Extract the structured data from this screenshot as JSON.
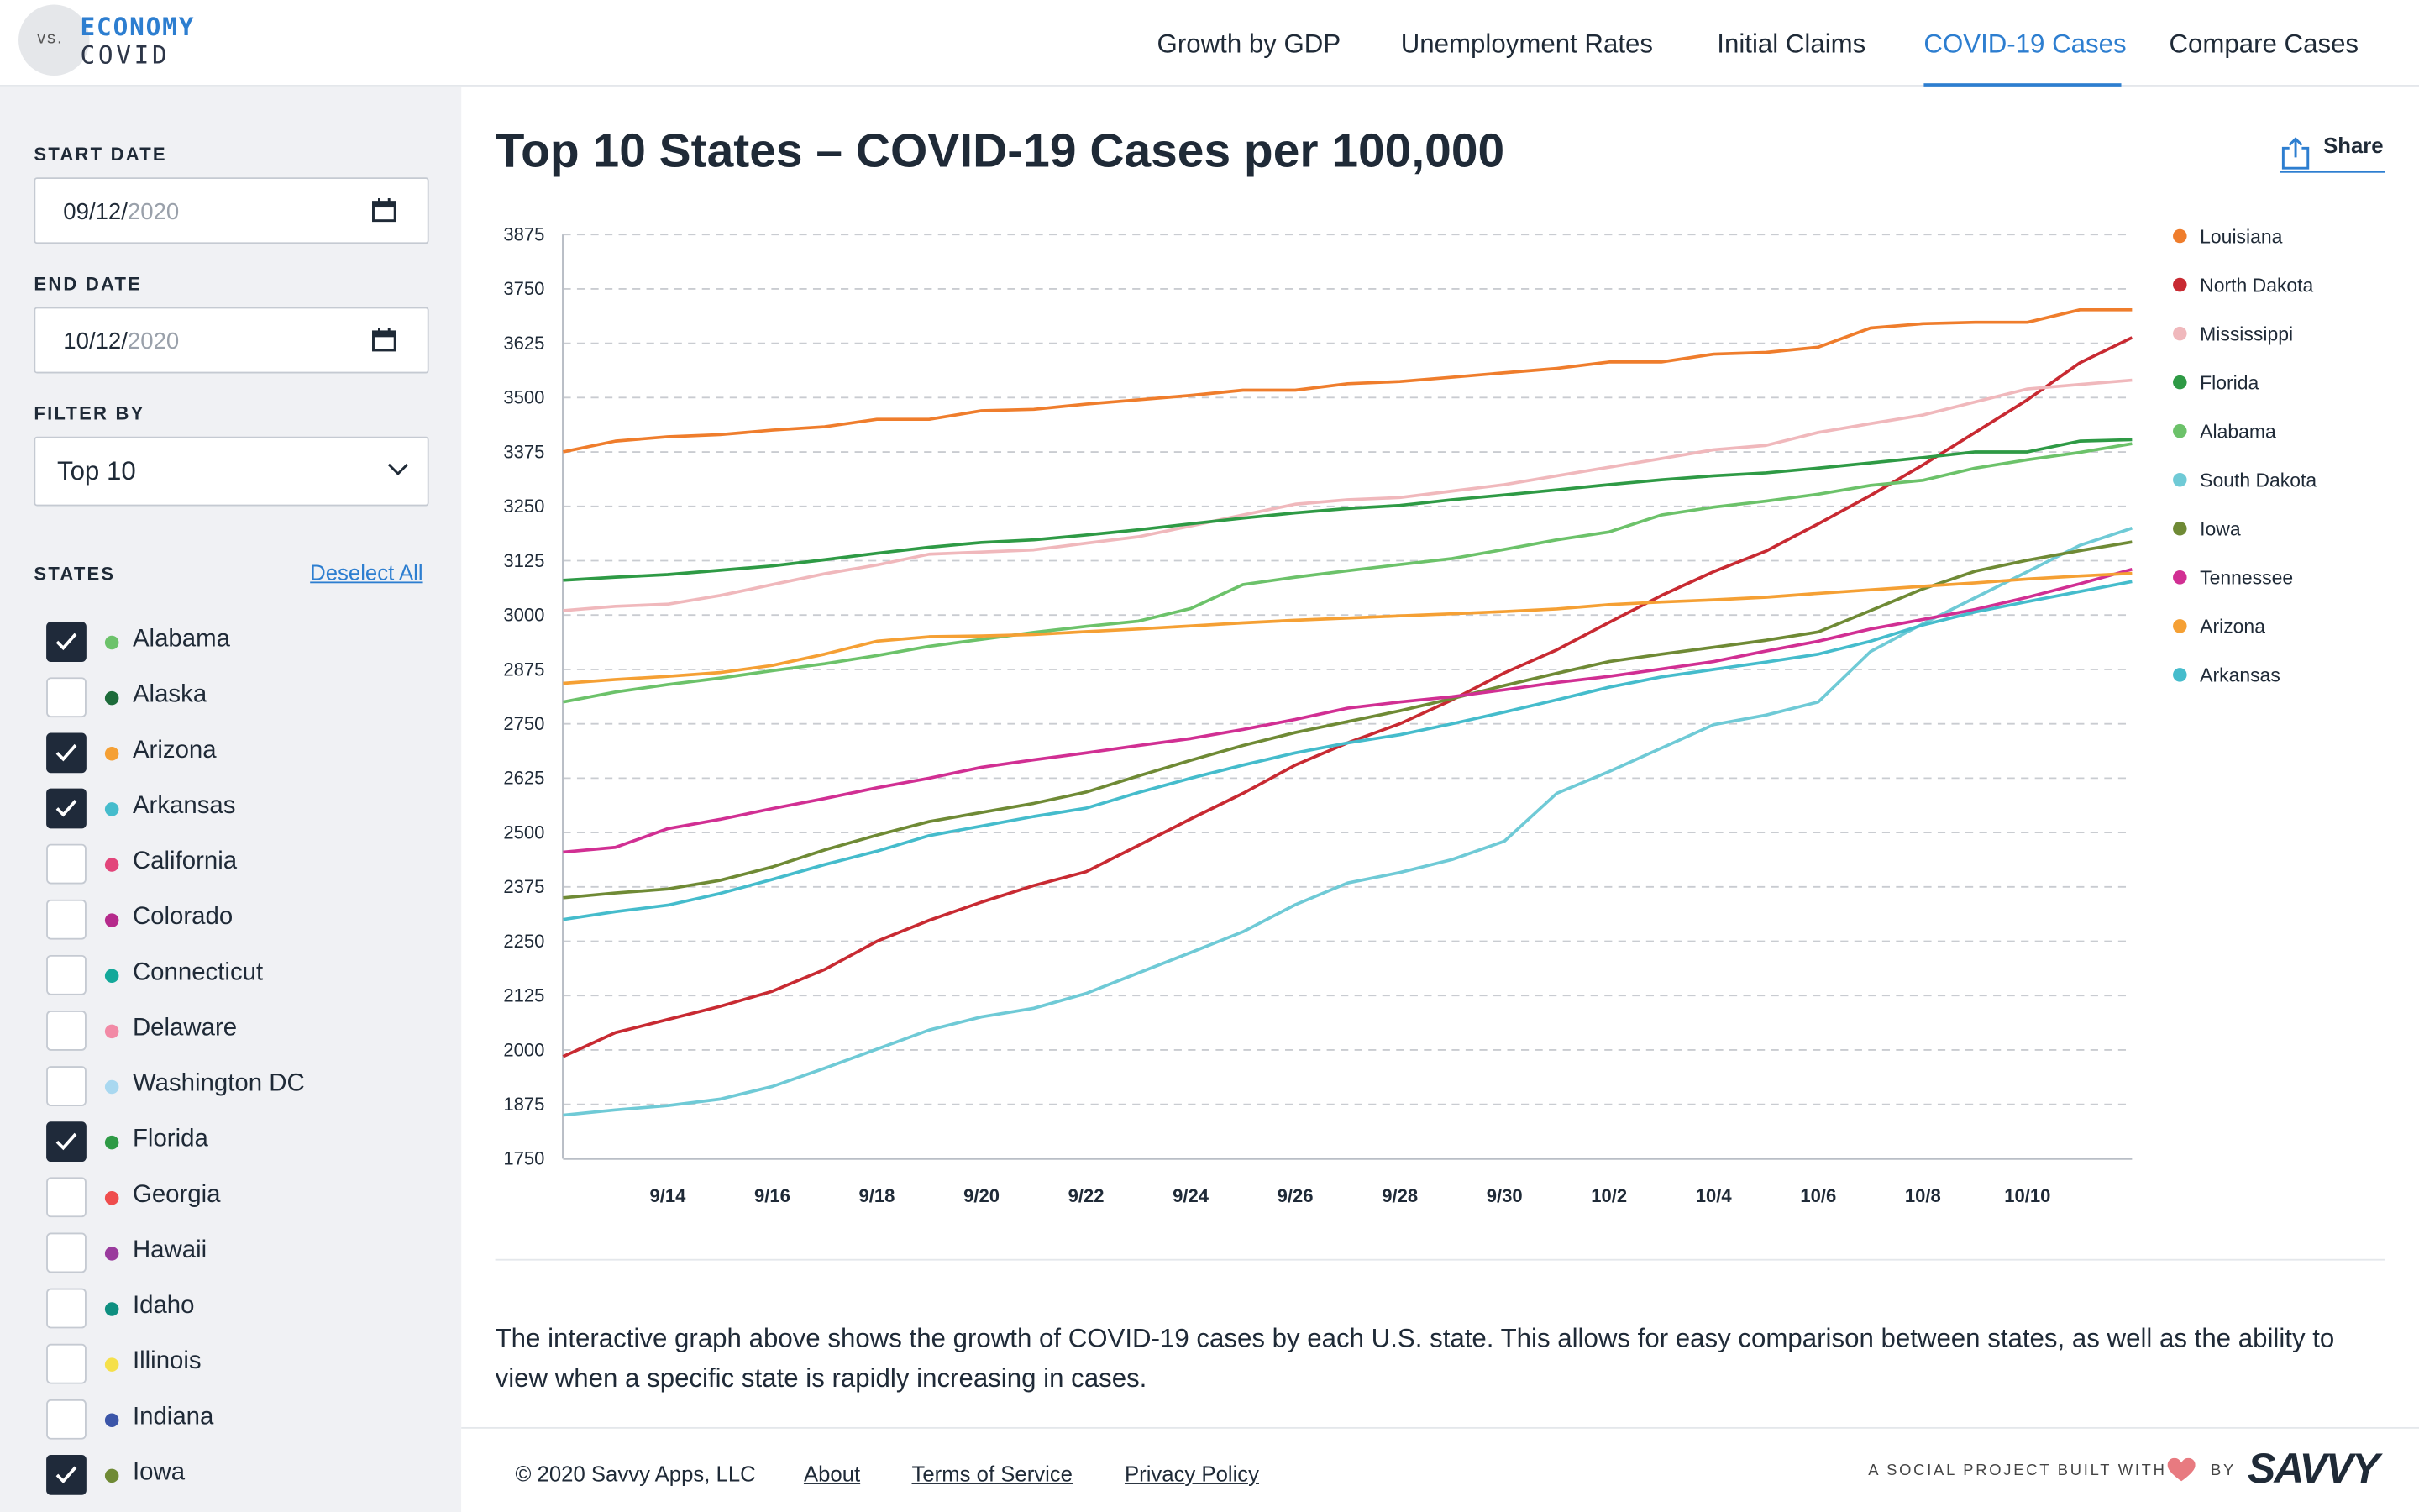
{
  "logo": {
    "prefix": "vs.",
    "line1": "ECONOMY",
    "line2": "COVID"
  },
  "nav": [
    {
      "label": "Growth by GDP",
      "active": false
    },
    {
      "label": "Unemployment Rates",
      "active": false
    },
    {
      "label": "Initial Claims",
      "active": false
    },
    {
      "label": "COVID-19 Cases",
      "active": true
    },
    {
      "label": "Compare Cases",
      "active": false
    }
  ],
  "sidebar": {
    "start_label": "START DATE",
    "start_date": {
      "mmdd": "09/12/",
      "year": "2020"
    },
    "end_label": "END DATE",
    "end_date": {
      "mmdd": "10/12/",
      "year": "2020"
    },
    "filter_label": "FILTER BY",
    "filter_value": "Top 10",
    "states_label": "STATES",
    "deselect_all": "Deselect All",
    "states": [
      {
        "name": "Alabama",
        "checked": true,
        "color": "#6cc26a"
      },
      {
        "name": "Alaska",
        "checked": false,
        "color": "#1d6b3a"
      },
      {
        "name": "Arizona",
        "checked": true,
        "color": "#f5a034"
      },
      {
        "name": "Arkansas",
        "checked": true,
        "color": "#45bccc"
      },
      {
        "name": "California",
        "checked": false,
        "color": "#e2457a"
      },
      {
        "name": "Colorado",
        "checked": false,
        "color": "#b52a8b"
      },
      {
        "name": "Connecticut",
        "checked": false,
        "color": "#14a89a"
      },
      {
        "name": "Delaware",
        "checked": false,
        "color": "#f28aa6"
      },
      {
        "name": "Washington DC",
        "checked": false,
        "color": "#a9d8f0"
      },
      {
        "name": "Florida",
        "checked": true,
        "color": "#2e9a45"
      },
      {
        "name": "Georgia",
        "checked": false,
        "color": "#ef4d4d"
      },
      {
        "name": "Hawaii",
        "checked": false,
        "color": "#9a3b9d"
      },
      {
        "name": "Idaho",
        "checked": false,
        "color": "#0e8f80"
      },
      {
        "name": "Illinois",
        "checked": false,
        "color": "#f5e04a"
      },
      {
        "name": "Indiana",
        "checked": false,
        "color": "#3b55a8"
      },
      {
        "name": "Iowa",
        "checked": true,
        "color": "#6f8a35"
      }
    ]
  },
  "main": {
    "title": "Top 10 States – COVID-19 Cases per 100,000",
    "share_label": "Share",
    "description": "The interactive graph above shows the growth of COVID-19 cases by each U.S. state. This allows for easy comparison between states, as well as the ability to view when a specific state is rapidly increasing in cases."
  },
  "footer": {
    "copyright": "© 2020 Savvy Apps, LLC",
    "links": [
      "About",
      "Terms of Service",
      "Privacy Policy"
    ],
    "social": "A SOCIAL PROJECT BUILT WITH",
    "by": "BY",
    "brand": "SAVVY"
  },
  "chart_data": {
    "type": "line",
    "title": "Top 10 States – COVID-19 Cases per 100,000",
    "xlabel": "",
    "ylabel": "",
    "ylim": [
      1750,
      3875
    ],
    "yticks": [
      1750,
      1875,
      2000,
      2125,
      2250,
      2375,
      2500,
      2625,
      2750,
      2875,
      3000,
      3125,
      3250,
      3375,
      3500,
      3625,
      3750,
      3875
    ],
    "x": [
      "9/12",
      "9/13",
      "9/14",
      "9/15",
      "9/16",
      "9/17",
      "9/18",
      "9/19",
      "9/20",
      "9/21",
      "9/22",
      "9/23",
      "9/24",
      "9/25",
      "9/26",
      "9/27",
      "9/28",
      "9/29",
      "9/30",
      "10/1",
      "10/2",
      "10/3",
      "10/4",
      "10/5",
      "10/6",
      "10/7",
      "10/8",
      "10/9",
      "10/10",
      "10/11",
      "10/12"
    ],
    "xtick_labels": [
      "9/14",
      "9/16",
      "9/18",
      "9/20",
      "9/22",
      "9/24",
      "9/26",
      "9/28",
      "9/30",
      "10/2",
      "10/4",
      "10/6",
      "10/8",
      "10/10"
    ],
    "grid": "horizontal dashed",
    "legend": "right",
    "series": [
      {
        "name": "Louisiana",
        "color": "#ef7d2c",
        "values": [
          3375,
          3400,
          3410,
          3415,
          3425,
          3433,
          3450,
          3450,
          3470,
          3473,
          3485,
          3495,
          3505,
          3517,
          3517,
          3532,
          3537,
          3547,
          3557,
          3567,
          3582,
          3582,
          3600,
          3604,
          3616,
          3660,
          3670,
          3673,
          3673,
          3702,
          3702
        ]
      },
      {
        "name": "North Dakota",
        "color": "#c82a32",
        "values": [
          1985,
          2040,
          2070,
          2100,
          2135,
          2185,
          2250,
          2298,
          2340,
          2378,
          2410,
          2470,
          2531,
          2590,
          2655,
          2706,
          2750,
          2805,
          2867,
          2920,
          2983,
          3045,
          3100,
          3147,
          3210,
          3275,
          3345,
          3420,
          3495,
          3580,
          3638
        ]
      },
      {
        "name": "Mississippi",
        "color": "#f0b8bc",
        "values": [
          3010,
          3020,
          3025,
          3045,
          3070,
          3095,
          3115,
          3140,
          3145,
          3150,
          3165,
          3180,
          3205,
          3230,
          3255,
          3265,
          3270,
          3285,
          3300,
          3320,
          3340,
          3360,
          3380,
          3390,
          3420,
          3440,
          3460,
          3490,
          3520,
          3530,
          3540
        ]
      },
      {
        "name": "Florida",
        "color": "#2e9a45",
        "values": [
          3080,
          3087,
          3093,
          3103,
          3113,
          3127,
          3142,
          3156,
          3167,
          3173,
          3184,
          3196,
          3210,
          3223,
          3235,
          3245,
          3252,
          3265,
          3276,
          3288,
          3300,
          3311,
          3320,
          3327,
          3338,
          3350,
          3362,
          3375,
          3375,
          3400,
          3403
        ]
      },
      {
        "name": "Alabama",
        "color": "#6cc26a",
        "values": [
          2800,
          2823,
          2840,
          2855,
          2872,
          2888,
          2907,
          2928,
          2944,
          2960,
          2974,
          2986,
          3015,
          3070,
          3087,
          3102,
          3116,
          3130,
          3151,
          3173,
          3191,
          3230,
          3248,
          3262,
          3278,
          3298,
          3310,
          3338,
          3357,
          3374,
          3394
        ]
      },
      {
        "name": "South Dakota",
        "color": "#6fcad6",
        "values": [
          1850,
          1862,
          1872,
          1887,
          1916,
          1958,
          2002,
          2046,
          2076,
          2096,
          2130,
          2177,
          2224,
          2272,
          2334,
          2384,
          2408,
          2438,
          2480,
          2590,
          2640,
          2694,
          2748,
          2770,
          2800,
          2916,
          2980,
          3040,
          3100,
          3160,
          3200
        ]
      },
      {
        "name": "Iowa",
        "color": "#6f8a35",
        "values": [
          2350,
          2361,
          2370,
          2390,
          2421,
          2460,
          2494,
          2525,
          2546,
          2567,
          2593,
          2630,
          2666,
          2700,
          2730,
          2755,
          2780,
          2808,
          2838,
          2866,
          2893,
          2910,
          2926,
          2942,
          2961,
          3010,
          3060,
          3101,
          3126,
          3148,
          3168
        ]
      },
      {
        "name": "Tennessee",
        "color": "#d12f93",
        "values": [
          2455,
          2466,
          2509,
          2530,
          2555,
          2578,
          2603,
          2625,
          2650,
          2667,
          2683,
          2700,
          2716,
          2737,
          2760,
          2786,
          2800,
          2812,
          2828,
          2845,
          2859,
          2876,
          2893,
          2917,
          2940,
          2968,
          2990,
          3013,
          3041,
          3072,
          3105
        ]
      },
      {
        "name": "Arizona",
        "color": "#f5a034",
        "values": [
          2843,
          2852,
          2859,
          2868,
          2884,
          2910,
          2940,
          2950,
          2952,
          2955,
          2962,
          2968,
          2975,
          2982,
          2988,
          2993,
          2998,
          3003,
          3008,
          3014,
          3024,
          3030,
          3035,
          3041,
          3050,
          3058,
          3066,
          3074,
          3083,
          3090,
          3096
        ]
      },
      {
        "name": "Arkansas",
        "color": "#45bccc",
        "values": [
          2300,
          2318,
          2333,
          2360,
          2392,
          2426,
          2457,
          2493,
          2515,
          2537,
          2556,
          2592,
          2625,
          2655,
          2683,
          2706,
          2725,
          2750,
          2777,
          2805,
          2834,
          2858,
          2875,
          2892,
          2910,
          2940,
          2977,
          3007,
          3031,
          3054,
          3077
        ]
      }
    ]
  }
}
